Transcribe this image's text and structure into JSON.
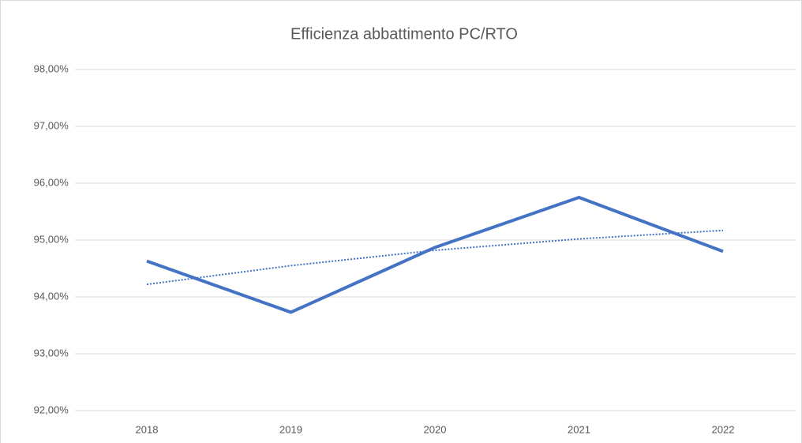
{
  "chart_data": {
    "type": "line",
    "title": "Efficienza abbattimento PC/RTO",
    "categories": [
      "2018",
      "2019",
      "2020",
      "2021",
      "2022"
    ],
    "series": [
      {
        "color": "#4472c4",
        "style": "solid",
        "values": [
          94.63,
          93.73,
          94.87,
          95.75,
          94.8
        ]
      },
      {
        "color": "#4472c4",
        "style": "dotted",
        "values": [
          94.22,
          94.55,
          94.82,
          95.02,
          95.17
        ]
      }
    ],
    "ylim": [
      92,
      98
    ],
    "yticks": [
      {
        "value": 92,
        "label": "92,00%"
      },
      {
        "value": 93,
        "label": "93,00%"
      },
      {
        "value": 94,
        "label": "94,00%"
      },
      {
        "value": 95,
        "label": "95,00%"
      },
      {
        "value": 96,
        "label": "96,00%"
      },
      {
        "value": 97,
        "label": "97,00%"
      },
      {
        "value": 98,
        "label": "98,00%"
      }
    ],
    "grid": true
  }
}
